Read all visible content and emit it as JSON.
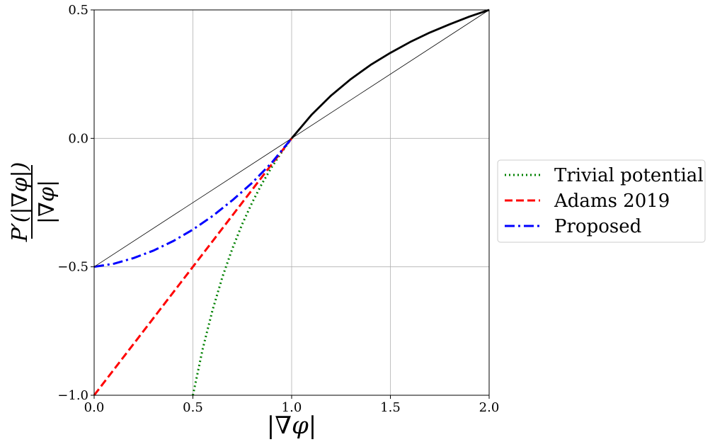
{
  "chart_data": {
    "type": "line",
    "xlabel": "|∇φ|",
    "ylabel": {
      "numerator": "P′(|∇φ|)",
      "denominator": "|∇φ|"
    },
    "xlim": [
      0.0,
      2.0
    ],
    "ylim": [
      -1.0,
      0.5
    ],
    "xticks": [
      "0.0",
      "0.5",
      "1.0",
      "1.5",
      "2.0"
    ],
    "yticks": [
      "−1.0",
      "−0.5",
      "0.0",
      "0.5"
    ],
    "xtick_values": [
      0.0,
      0.5,
      1.0,
      1.5,
      2.0
    ],
    "ytick_values": [
      -1.0,
      -0.5,
      0.0,
      0.5
    ],
    "grid": true,
    "legend_position": "outside-right",
    "series": [
      {
        "name": "Trivial potential",
        "color": "#008000",
        "style": "dotted",
        "x": [
          0.5,
          0.55,
          0.6,
          0.65,
          0.7,
          0.75,
          0.8,
          0.85,
          0.9,
          0.95,
          1.0
        ],
        "y": [
          -1.0,
          -0.818,
          -0.667,
          -0.538,
          -0.429,
          -0.333,
          -0.25,
          -0.176,
          -0.111,
          -0.053,
          0.0
        ]
      },
      {
        "name": "Adams 2019",
        "color": "#ff0000",
        "style": "dashed",
        "x": [
          0.0,
          1.0
        ],
        "y": [
          -1.0,
          0.0
        ]
      },
      {
        "name": "Proposed",
        "color": "#0000ff",
        "style": "dashdot",
        "x": [
          0.0,
          0.1,
          0.2,
          0.3,
          0.4,
          0.5,
          0.6,
          0.7,
          0.8,
          0.9,
          1.0
        ],
        "y": [
          -0.5,
          -0.488,
          -0.466,
          -0.437,
          -0.4,
          -0.355,
          -0.302,
          -0.241,
          -0.173,
          -0.094,
          0.0
        ]
      },
      {
        "name": "",
        "color": "#000000",
        "style": "solid",
        "x": [
          1.0,
          1.1,
          1.2,
          1.3,
          1.4,
          1.5,
          1.6,
          1.7,
          1.8,
          1.9,
          2.0
        ],
        "y": [
          0.0,
          0.091,
          0.167,
          0.231,
          0.286,
          0.333,
          0.375,
          0.412,
          0.444,
          0.474,
          0.5
        ]
      },
      {
        "name": "",
        "color": "#000000",
        "style": "thin",
        "x": [
          0.0,
          2.0
        ],
        "y": [
          -0.5,
          0.5
        ]
      }
    ]
  }
}
